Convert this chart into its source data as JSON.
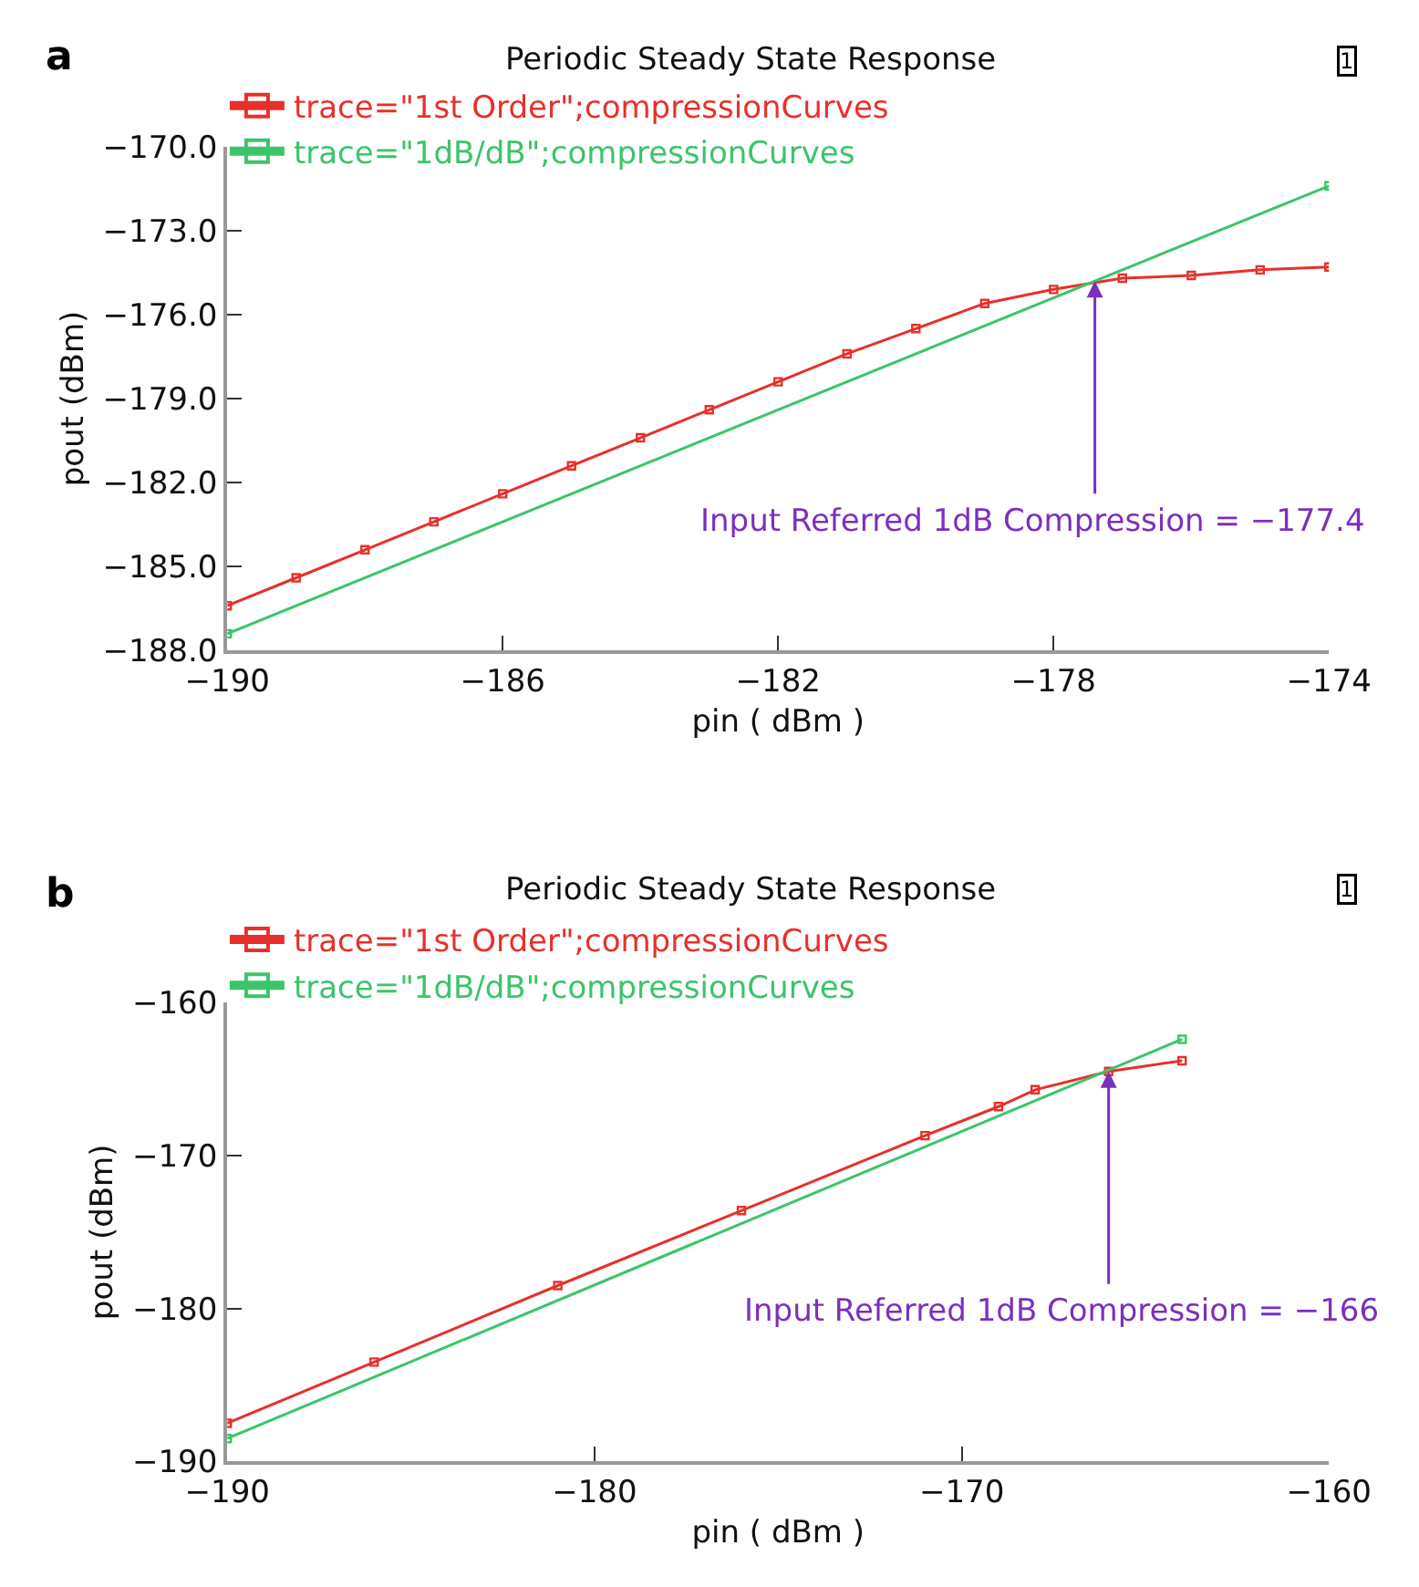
{
  "chart_data": [
    {
      "type": "line",
      "title": "Periodic Steady State Response",
      "xlabel": "pin ( dBm )",
      "ylabel": "pout (dBm)",
      "marker": "square",
      "line_style": "solid",
      "grid": false,
      "legend": "top left",
      "annotations": [
        "a",
        "1",
        {
          "text": "Input Referred 1dB Compression = −177.4",
          "x": -177.4,
          "y": -174.8
        }
      ],
      "xlim": [
        -190,
        -174
      ],
      "xticks": [
        {
          "value": -190,
          "label": "−190"
        },
        {
          "value": -186,
          "label": "−186"
        },
        {
          "value": -182,
          "label": "−182"
        },
        {
          "value": -178,
          "label": "−178"
        },
        {
          "value": -174,
          "label": "−174"
        }
      ],
      "ylim": [
        -188,
        -170
      ],
      "yticks": [
        {
          "value": -188,
          "label": "−188.0"
        },
        {
          "value": -185,
          "label": "−185.0"
        },
        {
          "value": -182,
          "label": "−182.0"
        },
        {
          "value": -179,
          "label": "−179.0"
        },
        {
          "value": -176,
          "label": "−176.0"
        },
        {
          "value": -173,
          "label": "−173.0"
        },
        {
          "value": -170,
          "label": "−170.0"
        }
      ],
      "series": [
        {
          "name": "trace=\"1st Order\";compressionCurves",
          "color": "#e8302a",
          "x": [
            -190,
            -189,
            -188,
            -187,
            -186,
            -185,
            -184,
            -183,
            -182,
            -181,
            -180,
            -179,
            -178,
            -177,
            -176,
            -175,
            -174
          ],
          "values": [
            -186.4,
            -185.4,
            -184.4,
            -183.4,
            -182.4,
            -181.4,
            -180.4,
            -179.4,
            -178.4,
            -177.4,
            -176.5,
            -175.6,
            -175.1,
            -174.7,
            -174.6,
            -174.4,
            -174.3
          ]
        },
        {
          "name": "trace=\"1dB/dB\";compressionCurves",
          "color": "#3cc46a",
          "x": [
            -190,
            -174
          ],
          "values": [
            -187.4,
            -171.4
          ]
        }
      ]
    },
    {
      "type": "line",
      "title": "Periodic Steady State Response",
      "xlabel": "pin ( dBm )",
      "ylabel": "pout (dBm)",
      "marker": "square",
      "line_style": "solid",
      "grid": false,
      "legend": "top left",
      "annotations": [
        "b",
        "1",
        {
          "text": "Input Referred 1dB Compression = −166",
          "x": -166,
          "y": -164.5
        }
      ],
      "xlim": [
        -190,
        -160
      ],
      "xticks": [
        {
          "value": -190,
          "label": "−190"
        },
        {
          "value": -180,
          "label": "−180"
        },
        {
          "value": -170,
          "label": "−170"
        },
        {
          "value": -160,
          "label": "−160"
        }
      ],
      "ylim": [
        -190,
        -160
      ],
      "yticks": [
        {
          "value": -190,
          "label": "−190"
        },
        {
          "value": -180,
          "label": "−180"
        },
        {
          "value": -170,
          "label": "−170"
        },
        {
          "value": -160,
          "label": "−160"
        }
      ],
      "series": [
        {
          "name": "trace=\"1st Order\";compressionCurves",
          "color": "#e8302a",
          "x": [
            -190,
            -186,
            -181,
            -176,
            -171,
            -169,
            -168,
            -166,
            -164
          ],
          "values": [
            -187.5,
            -183.5,
            -178.5,
            -173.6,
            -168.7,
            -166.8,
            -165.7,
            -164.5,
            -163.8
          ]
        },
        {
          "name": "trace=\"1dB/dB\";compressionCurves",
          "color": "#3cc46a",
          "x": [
            -190,
            -164
          ],
          "values": [
            -188.5,
            -162.4
          ]
        }
      ]
    }
  ]
}
